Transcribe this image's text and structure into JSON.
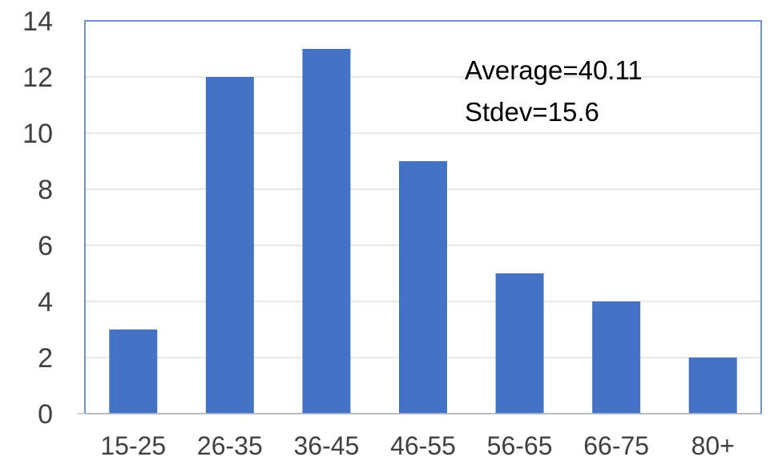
{
  "chart_data": {
    "type": "bar",
    "categories": [
      "15-25",
      "26-35",
      "36-45",
      "46-55",
      "56-65",
      "66-75",
      "80+"
    ],
    "values": [
      3,
      12,
      13,
      9,
      5,
      4,
      2
    ],
    "title": "",
    "xlabel": "",
    "ylabel": "",
    "ylim": [
      0,
      14
    ],
    "yticks": [
      0,
      2,
      4,
      6,
      8,
      10,
      12,
      14
    ],
    "grid": true,
    "legend": "none",
    "annotations": [
      "Average=40.11",
      "Stdev=15.6"
    ],
    "colors": {
      "bar": "#4472C4",
      "gridline": "#D9D9D9",
      "plot_border": "#4472C4",
      "axis": "#BFBFBF",
      "tick_text": "#404040",
      "annotation_text": "#000000"
    }
  }
}
